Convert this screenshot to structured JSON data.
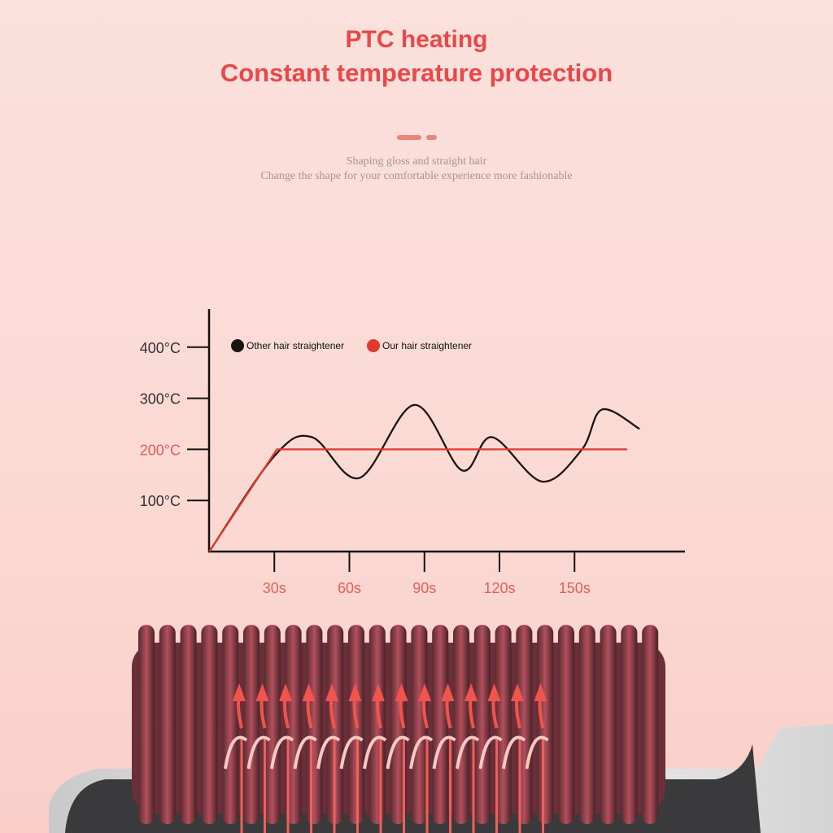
{
  "header": {
    "title_line1": "PTC heating",
    "title_line2": "Constant temperature protection",
    "subtitle_line1": "Shaping gloss and straight hair",
    "subtitle_line2": "Change the shape for your comfortable experience more fashionable"
  },
  "colors": {
    "accent": "#e8484a",
    "other_series": "#1a1414",
    "our_series": "#e0392e",
    "highlight_tick": "#e06060"
  },
  "chart_data": {
    "type": "line",
    "title": "",
    "xlabel": "",
    "ylabel": "",
    "x_ticks": [
      "30s",
      "60s",
      "90s",
      "120s",
      "150s"
    ],
    "x_tick_values": [
      30,
      60,
      90,
      120,
      150
    ],
    "y_ticks": [
      "100°C",
      "200°C",
      "300°C",
      "400°C"
    ],
    "y_tick_values": [
      100,
      200,
      300,
      400
    ],
    "highlighted_y_tick": "200°C",
    "xlim": [
      0,
      190
    ],
    "ylim": [
      0,
      470
    ],
    "grid": false,
    "legend_position": "top-left",
    "series": [
      {
        "name": "Other hair straightener",
        "color": "#1a1414",
        "x": [
          4,
          30,
          45,
          64,
          86,
          105,
          117,
          137,
          153,
          161,
          176
        ],
        "y": [
          0,
          187,
          224,
          144,
          287,
          159,
          224,
          137,
          200,
          278,
          240
        ]
      },
      {
        "name": "Our hair straightener",
        "color": "#e0392e",
        "x": [
          4,
          31,
          171
        ],
        "y": [
          0,
          200,
          200
        ]
      }
    ]
  }
}
